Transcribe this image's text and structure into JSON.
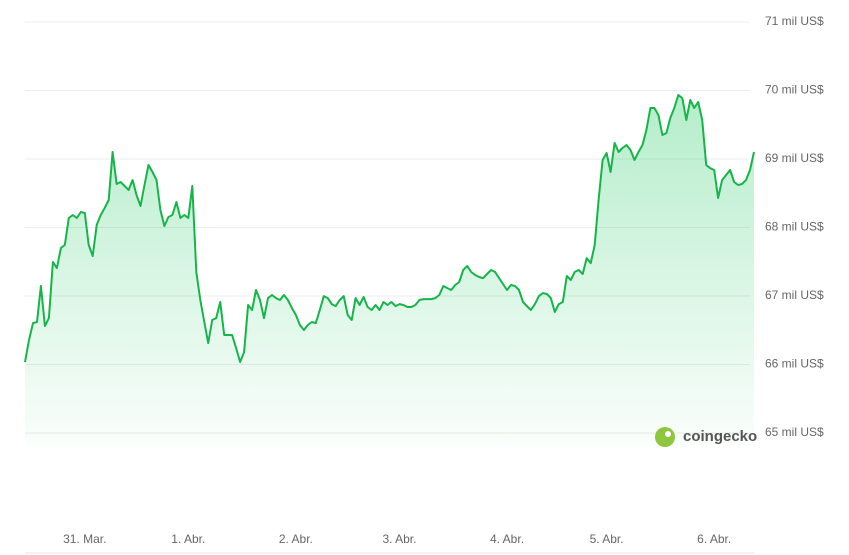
{
  "chart_data": {
    "type": "line",
    "color": "#16b54a",
    "grid": true,
    "watermark": "coingecko",
    "ylim": [
      65000,
      71000
    ],
    "yticks": [
      {
        "value": 65000,
        "label": "65 mil US$"
      },
      {
        "value": 66000,
        "label": "66 mil US$"
      },
      {
        "value": 67000,
        "label": "67 mil US$"
      },
      {
        "value": 68000,
        "label": "68 mil US$"
      },
      {
        "value": 69000,
        "label": "69 mil US$"
      },
      {
        "value": 70000,
        "label": "70 mil US$"
      },
      {
        "value": 71000,
        "label": "71 mil US$"
      }
    ],
    "categories": [
      null,
      null,
      null,
      null,
      null,
      null,
      null,
      null,
      null,
      null,
      null,
      null,
      null,
      null,
      null,
      "31. Mar.",
      null,
      null,
      null,
      null,
      null,
      null,
      null,
      null,
      null,
      null,
      null,
      null,
      null,
      null,
      null,
      null,
      null,
      null,
      null,
      null,
      null,
      null,
      null,
      null,
      null,
      "1. Abr.",
      null,
      null,
      null,
      null,
      null,
      null,
      null,
      null,
      null,
      null,
      null,
      null,
      null,
      null,
      null,
      null,
      null,
      null,
      null,
      null,
      null,
      null,
      null,
      null,
      null,
      null,
      "2. Abr.",
      null,
      null,
      null,
      null,
      null,
      null,
      null,
      null,
      null,
      null,
      null,
      null,
      null,
      null,
      null,
      null,
      null,
      null,
      null,
      null,
      null,
      null,
      null,
      null,
      null,
      "3. Abr.",
      null,
      null,
      null,
      null,
      null,
      null,
      null,
      null,
      null,
      null,
      null,
      null,
      null,
      null,
      null,
      null,
      null,
      null,
      null,
      null,
      null,
      null,
      null,
      null,
      null,
      null,
      "4. Abr.",
      null,
      null,
      null,
      null,
      null,
      null,
      null,
      null,
      null,
      null,
      null,
      null,
      null,
      null,
      null,
      null,
      null,
      null,
      null,
      null,
      null,
      null,
      null,
      null,
      "5. Abr.",
      null,
      null,
      null,
      null,
      null,
      null,
      null,
      null,
      null,
      null,
      null,
      null,
      null,
      null,
      null,
      null,
      null,
      null,
      null,
      null,
      null,
      null,
      null,
      null,
      null,
      null,
      "6. Abr.",
      null,
      null,
      null,
      null,
      null,
      null,
      null,
      null,
      null,
      null
    ],
    "values": [
      66036,
      66357,
      66605,
      66620,
      67146,
      66562,
      66678,
      67496,
      67408,
      67700,
      67744,
      68138,
      68182,
      68138,
      68226,
      68211,
      67744,
      67584,
      68036,
      68182,
      68284,
      68401,
      69102,
      68635,
      68664,
      68606,
      68547,
      68693,
      68474,
      68314,
      68620,
      68912,
      68810,
      68693,
      68255,
      68022,
      68153,
      68182,
      68372,
      68138,
      68182,
      68138,
      68606,
      67350,
      66941,
      66620,
      66313,
      66649,
      66678,
      66912,
      66430,
      66430,
      66430,
      66240,
      66036,
      66182,
      66868,
      66795,
      67087,
      66941,
      66678,
      66970,
      67014,
      66970,
      66941,
      67014,
      66941,
      66824,
      66722,
      66576,
      66503,
      66576,
      66620,
      66605,
      66795,
      66999,
      66970,
      66882,
      66853,
      66941,
      66999,
      66722,
      66649,
      66970,
      66868,
      66985,
      66839,
      66795,
      66868,
      66795,
      66912,
      66868,
      66912,
      66853,
      66882,
      66868,
      66839,
      66839,
      66868,
      66941,
      66955,
      66955,
      66955,
      66970,
      67014,
      67146,
      67116,
      67087,
      67160,
      67204,
      67379,
      67438,
      67350,
      67306,
      67277,
      67262,
      67321,
      67379,
      67350,
      67262,
      67175,
      67087,
      67160,
      67146,
      67087,
      66912,
      66853,
      66795,
      66882,
      66999,
      67043,
      67029,
      66970,
      66766,
      66882,
      66912,
      67292,
      67233,
      67350,
      67379,
      67321,
      67554,
      67481,
      67744,
      68401,
      68985,
      69087,
      68810,
      69233,
      69102,
      69160,
      69204,
      69131,
      68985,
      69102,
      69204,
      69423,
      69744,
      69744,
      69642,
      69350,
      69379,
      69598,
      69744,
      69934,
      69890,
      69569,
      69861,
      69744,
      69832,
      69569,
      68912,
      68866,
      68839,
      68430,
      68693,
      68766,
      68839,
      68664,
      68620,
      68635,
      68693,
      68839,
      69102
    ]
  }
}
